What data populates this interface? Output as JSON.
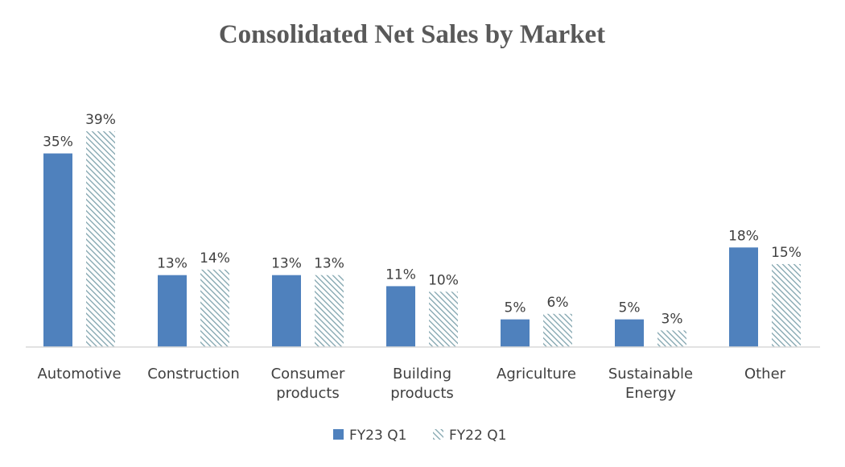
{
  "chart_data": {
    "type": "bar",
    "title": "Consolidated Net Sales by Market",
    "categories": [
      [
        "Automotive"
      ],
      [
        "Construction"
      ],
      [
        "Consumer",
        "products"
      ],
      [
        "Building",
        "products"
      ],
      [
        "Agriculture"
      ],
      [
        "Sustainable",
        "Energy"
      ],
      [
        "Other"
      ]
    ],
    "series": [
      {
        "name": "FY23 Q1",
        "values": [
          35,
          13,
          13,
          11,
          5,
          5,
          18
        ],
        "labels": [
          "35%",
          "13%",
          "13%",
          "11%",
          "5%",
          "5%",
          "18%"
        ],
        "color": "#4f81bd",
        "fill": "solid"
      },
      {
        "name": "FY22 Q1",
        "values": [
          39,
          14,
          13,
          10,
          6,
          3,
          15
        ],
        "labels": [
          "39%",
          "14%",
          "13%",
          "10%",
          "6%",
          "3%",
          "15%"
        ],
        "color": "#a6bfc9",
        "fill": "hatched"
      }
    ],
    "value_format": "percent",
    "ylim": [
      0,
      40
    ],
    "axis_color": "#d9d9d9",
    "grid": false,
    "y_axis_visible": false,
    "legend_position": "bottom"
  }
}
